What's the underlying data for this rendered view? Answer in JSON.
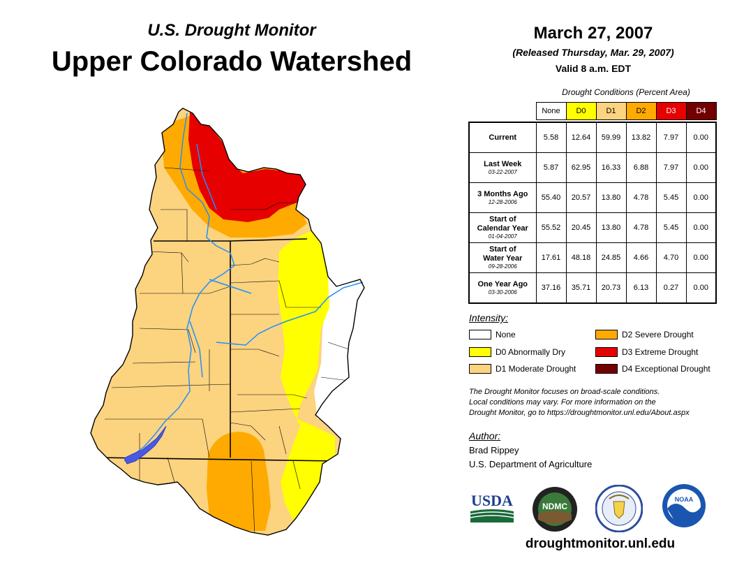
{
  "header": {
    "subtitle": "U.S. Drought Monitor",
    "title": "Upper Colorado Watershed",
    "date": "March 27, 2007",
    "released": "(Released Thursday, Mar. 29, 2007)",
    "valid": "Valid 8 a.m. EDT"
  },
  "table": {
    "caption": "Drought Conditions (Percent Area)",
    "columns": [
      "None",
      "D0",
      "D1",
      "D2",
      "D3",
      "D4"
    ],
    "rows": [
      {
        "label": "Current",
        "label2": "",
        "date": "",
        "values": [
          "5.58",
          "12.64",
          "59.99",
          "13.82",
          "7.97",
          "0.00"
        ]
      },
      {
        "label": "Last Week",
        "label2": "",
        "date": "03-22-2007",
        "values": [
          "5.87",
          "62.95",
          "16.33",
          "6.88",
          "7.97",
          "0.00"
        ]
      },
      {
        "label": "3 Months Ago",
        "label2": "",
        "date": "12-28-2006",
        "values": [
          "55.40",
          "20.57",
          "13.80",
          "4.78",
          "5.45",
          "0.00"
        ]
      },
      {
        "label": "Start of",
        "label2": "Calendar Year",
        "date": "01-04-2007",
        "values": [
          "55.52",
          "20.45",
          "13.80",
          "4.78",
          "5.45",
          "0.00"
        ]
      },
      {
        "label": "Start of",
        "label2": "Water Year",
        "date": "09-28-2006",
        "values": [
          "17.61",
          "48.18",
          "24.85",
          "4.66",
          "4.70",
          "0.00"
        ]
      },
      {
        "label": "One Year Ago",
        "label2": "",
        "date": "03-30-2006",
        "values": [
          "37.16",
          "35.71",
          "20.73",
          "6.13",
          "0.27",
          "0.00"
        ]
      }
    ]
  },
  "legend": {
    "title": "Intensity:",
    "items": [
      {
        "label": "None",
        "color": "#ffffff"
      },
      {
        "label": "D0 Abnormally Dry",
        "color": "#ffff00"
      },
      {
        "label": "D1 Moderate Drought",
        "color": "#fcd37f"
      },
      {
        "label": "D2 Severe Drought",
        "color": "#ffaa00"
      },
      {
        "label": "D3 Extreme Drought",
        "color": "#e60000"
      },
      {
        "label": "D4 Exceptional Drought",
        "color": "#730000"
      }
    ]
  },
  "colors": {
    "none": "#ffffff",
    "d0": "#ffff00",
    "d1": "#fcd37f",
    "d2": "#ffaa00",
    "d3": "#e60000",
    "d4": "#730000",
    "river": "#1e90ff",
    "boundary": "#000000"
  },
  "note": {
    "line1": "The Drought Monitor focuses on broad-scale conditions.",
    "line2": "Local conditions may vary. For more information on the",
    "line3": "Drought Monitor, go to https://droughtmonitor.unl.edu/About.aspx"
  },
  "author": {
    "title": "Author:",
    "name": "Brad Rippey",
    "org": "U.S. Department of Agriculture"
  },
  "logos": {
    "usda": "USDA",
    "ndmc": "NDMC",
    "noaa": "NOAA"
  },
  "site": "droughtmonitor.unl.edu"
}
